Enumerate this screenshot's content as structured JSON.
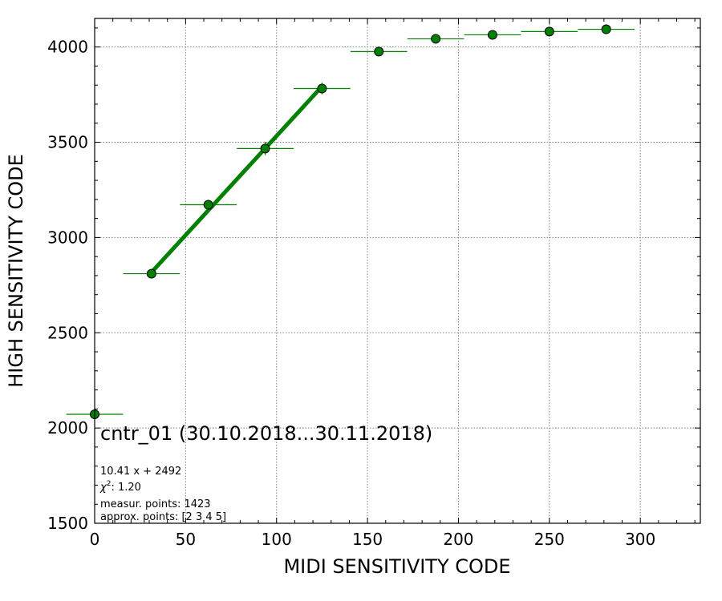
{
  "chart_data": {
    "type": "scatter",
    "xlabel": "MIDI SENSITIVITY CODE",
    "ylabel": "HIGH SENSITIVITY CODE",
    "xlim": [
      0,
      333
    ],
    "ylim": [
      1500,
      4150
    ],
    "x_ticks": [
      0,
      50,
      100,
      150,
      200,
      250,
      300
    ],
    "y_ticks": [
      1500,
      2000,
      2500,
      3000,
      3500,
      4000
    ],
    "grid": true,
    "colors": {
      "marker": "#008000",
      "fit": "#008000",
      "marker_edge": "#000000"
    },
    "series": [
      {
        "points": [
          {
            "x": 0,
            "y": 2072,
            "xerr": 15.6,
            "yerr": 0
          },
          {
            "x": 31.25,
            "y": 2810,
            "xerr": 15.6,
            "yerr": 8
          },
          {
            "x": 62.5,
            "y": 3172,
            "xerr": 15.6,
            "yerr": 25
          },
          {
            "x": 93.75,
            "y": 3467,
            "xerr": 15.6,
            "yerr": 35
          },
          {
            "x": 125,
            "y": 3782,
            "xerr": 15.6,
            "yerr": 30
          },
          {
            "x": 156.25,
            "y": 3976,
            "xerr": 15.6,
            "yerr": 0
          },
          {
            "x": 187.5,
            "y": 4043,
            "xerr": 15.6,
            "yerr": 0
          },
          {
            "x": 218.75,
            "y": 4064,
            "xerr": 15.6,
            "yerr": 0
          },
          {
            "x": 250,
            "y": 4081,
            "xerr": 15.6,
            "yerr": 0
          },
          {
            "x": 281.25,
            "y": 4093,
            "xerr": 15.6,
            "yerr": 0
          }
        ]
      }
    ],
    "fit": {
      "slope": 10.41,
      "intercept": 2492,
      "x_range": [
        31.25,
        125
      ]
    },
    "annotations": {
      "title": "cntr_01 (30.10.2018...30.11.2018)",
      "equation": "10.41 x + 2492",
      "chi2_value": "1.20",
      "measur_points": "measur. points: 1423",
      "approx_points": "approx. points: [2 3 4 5]"
    }
  }
}
